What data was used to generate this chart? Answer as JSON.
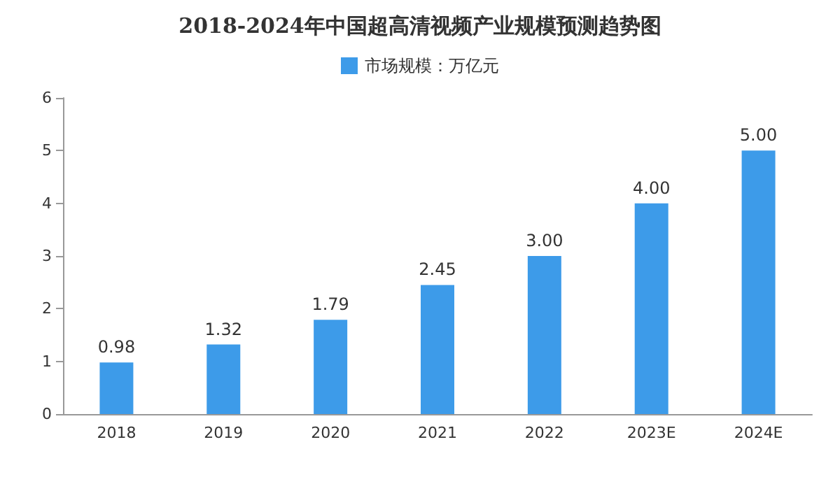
{
  "chart_data": {
    "type": "bar",
    "title": "2018-2024年中国超高清视频产业规模预测趋势图",
    "categories": [
      "2018",
      "2019",
      "2020",
      "2021",
      "2022",
      "2023E",
      "2024E"
    ],
    "series": [
      {
        "name": "市场规模：万亿元",
        "color": "#3d9be9",
        "values": [
          0.98,
          1.32,
          1.79,
          2.45,
          3.0,
          4.0,
          5.0
        ]
      }
    ],
    "value_labels": [
      "0.98",
      "1.32",
      "1.79",
      "2.45",
      "3.00",
      "4.00",
      "5.00"
    ],
    "ylim": [
      0,
      6
    ],
    "yticks": [
      0,
      1,
      2,
      3,
      4,
      5,
      6
    ],
    "legend": "top",
    "grid": false
  }
}
